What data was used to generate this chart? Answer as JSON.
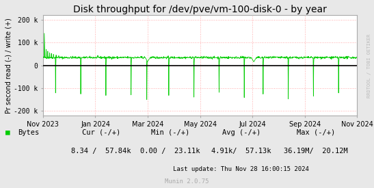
{
  "title": "Disk throughput for /dev/pve/vm-100-disk-0 - by year",
  "ylabel": "Pr second read (-) / write (+)",
  "xlabel_ticks": [
    "Nov 2023",
    "Jan 2024",
    "Mar 2024",
    "May 2024",
    "Jul 2024",
    "Sep 2024",
    "Nov 2024"
  ],
  "ylim": [
    -220000,
    220000
  ],
  "yticks": [
    -200000,
    -100000,
    0,
    100000,
    200000
  ],
  "ytick_labels": [
    "-200 k",
    "-100 k",
    "0",
    "100 k",
    "200 k"
  ],
  "bg_color": "#e8e8e8",
  "plot_bg_color": "#ffffff",
  "grid_color": "#ffaaaa",
  "line_color": "#00cc00",
  "zero_line_color": "#000000",
  "legend_label": "Bytes",
  "legend_color": "#00cc00",
  "cur_label": "Cur (-/+)",
  "min_label": "Min (-/+)",
  "avg_label": "Avg (-/+)",
  "max_label": "Max (-/+)",
  "cur_val": "8.34 /  57.84k",
  "min_val": "0.00 /  23.11k",
  "avg_val": "4.91k/  57.13k",
  "max_val": "36.19M/  20.12M",
  "last_update": "Last update: Thu Nov 28 16:00:15 2024",
  "munin_version": "Munin 2.0.75",
  "rrdtool_label": "RRDTOOL / TOBI OETIKER",
  "title_fontsize": 10,
  "axis_fontsize": 7,
  "legend_fontsize": 7.5,
  "annotation_fontsize": 6.5
}
